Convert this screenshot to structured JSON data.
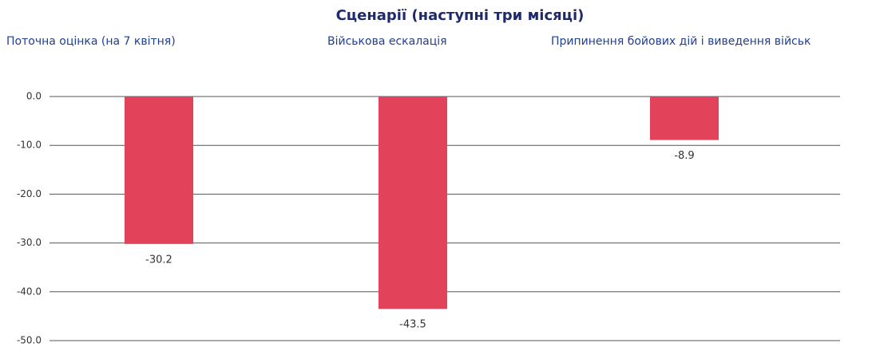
{
  "chart_data": {
    "type": "bar",
    "title": "Сценарії (наступні три місяці)",
    "categories": [
      "Поточна оцінка (на 7 квітня)",
      "Військова ескалація",
      "Припинення бойових дій і виведення військ"
    ],
    "values": [
      -30.2,
      -43.5,
      -8.9
    ],
    "color": "#e2435a",
    "ylim": [
      -50,
      0
    ],
    "yticks": [
      {
        "value": 0,
        "label": "0.0"
      },
      {
        "value": -10,
        "label": "-10.0"
      },
      {
        "value": -20,
        "label": "-20.0"
      },
      {
        "value": -30,
        "label": "-30.0"
      },
      {
        "value": -40,
        "label": "-40.0"
      },
      {
        "value": -50,
        "label": "-50.0"
      }
    ],
    "grid": true
  }
}
